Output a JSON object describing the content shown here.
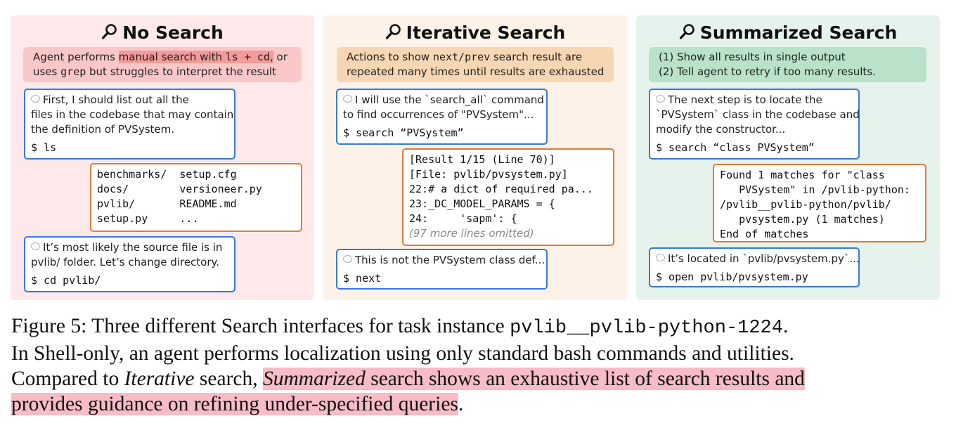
{
  "panels": {
    "no_search": {
      "title": "No Search",
      "note": {
        "pre": "Agent performs ",
        "hl1": "manual search with ",
        "hl_code": "ls + cd",
        "hl_end": ",",
        "post": " or",
        "line2_pre": "uses ",
        "line2_code": "grep",
        "line2_post": " but struggles to interpret the result"
      },
      "step1": {
        "thought": [
          "First, I should list out all the",
          "files in the codebase that may contain",
          "the definition of PVSystem."
        ],
        "command": "$ ls"
      },
      "ls_output": [
        "benchmarks/  setup.cfg",
        "docs/        versioneer.py",
        "pvlib/       README.md",
        "setup.py     ..."
      ],
      "step2": {
        "thought": [
          "It’s most likely the source file is in",
          "pvlib/ folder. Let’s change directory."
        ],
        "command": "$ cd pvlib/"
      }
    },
    "iterative": {
      "title": "Iterative Search",
      "note": {
        "pre": "Actions to show ",
        "code": "next/prev",
        "post": " search result are",
        "line2": "repeated many times until results are exhausted"
      },
      "step1": {
        "thought": [
          "I will use the `search_all` command",
          "to find occurrences of \"PVSystem\"..."
        ],
        "command": "$ search “PVSystem”"
      },
      "result": [
        "[Result 1/15 (Line 70)]",
        "[File: pvlib/pvsystem.py]",
        "22:# a dict of required pa...",
        "23:_DC_MODEL_PARAMS = {",
        "24:     'sapm': {"
      ],
      "omitted": "(97 more lines omitted)",
      "step2": {
        "thought": [
          "This is not the PVSystem class def..."
        ],
        "command": "$ next"
      }
    },
    "summarized": {
      "title": "Summarized Search",
      "note": {
        "line1": "(1) Show all results in single output",
        "line2": "(2) Tell agent to retry if too many results."
      },
      "step1": {
        "thought": [
          "The next step is to locate the",
          "`PVSystem` class in the codebase and",
          "modify the constructor..."
        ],
        "command": "$ search “class PVSystem”"
      },
      "result": [
        "Found 1 matches for \"class",
        "   PVSystem\" in /pvlib-python:",
        "/pvlib__pvlib-python/pvlib/",
        "   pvsystem.py (1 matches)",
        "End of matches"
      ],
      "step2": {
        "thought": [
          "It’s located in `pvlib/pvsystem.py`..."
        ],
        "command": "$ open pvlib/pvsystem.py"
      }
    }
  },
  "caption": {
    "label": "Figure 5:",
    "l1_text": " Three different Search interfaces for task instance ",
    "l1_code": "pvlib__pvlib-python-1224",
    "l1_end": ".",
    "l2": "In Shell-only, an agent performs localization using only standard bash commands and utilities.",
    "l3_a": "Compared to ",
    "l3_italic": "Iterative",
    "l3_b": " search, ",
    "l3_hl_italic": "Summarized",
    "l3_hl": " search shows an exhaustive list of search results and",
    "l4_hl": "provides guidance on refining under-specified queries",
    "l4_end": "."
  }
}
